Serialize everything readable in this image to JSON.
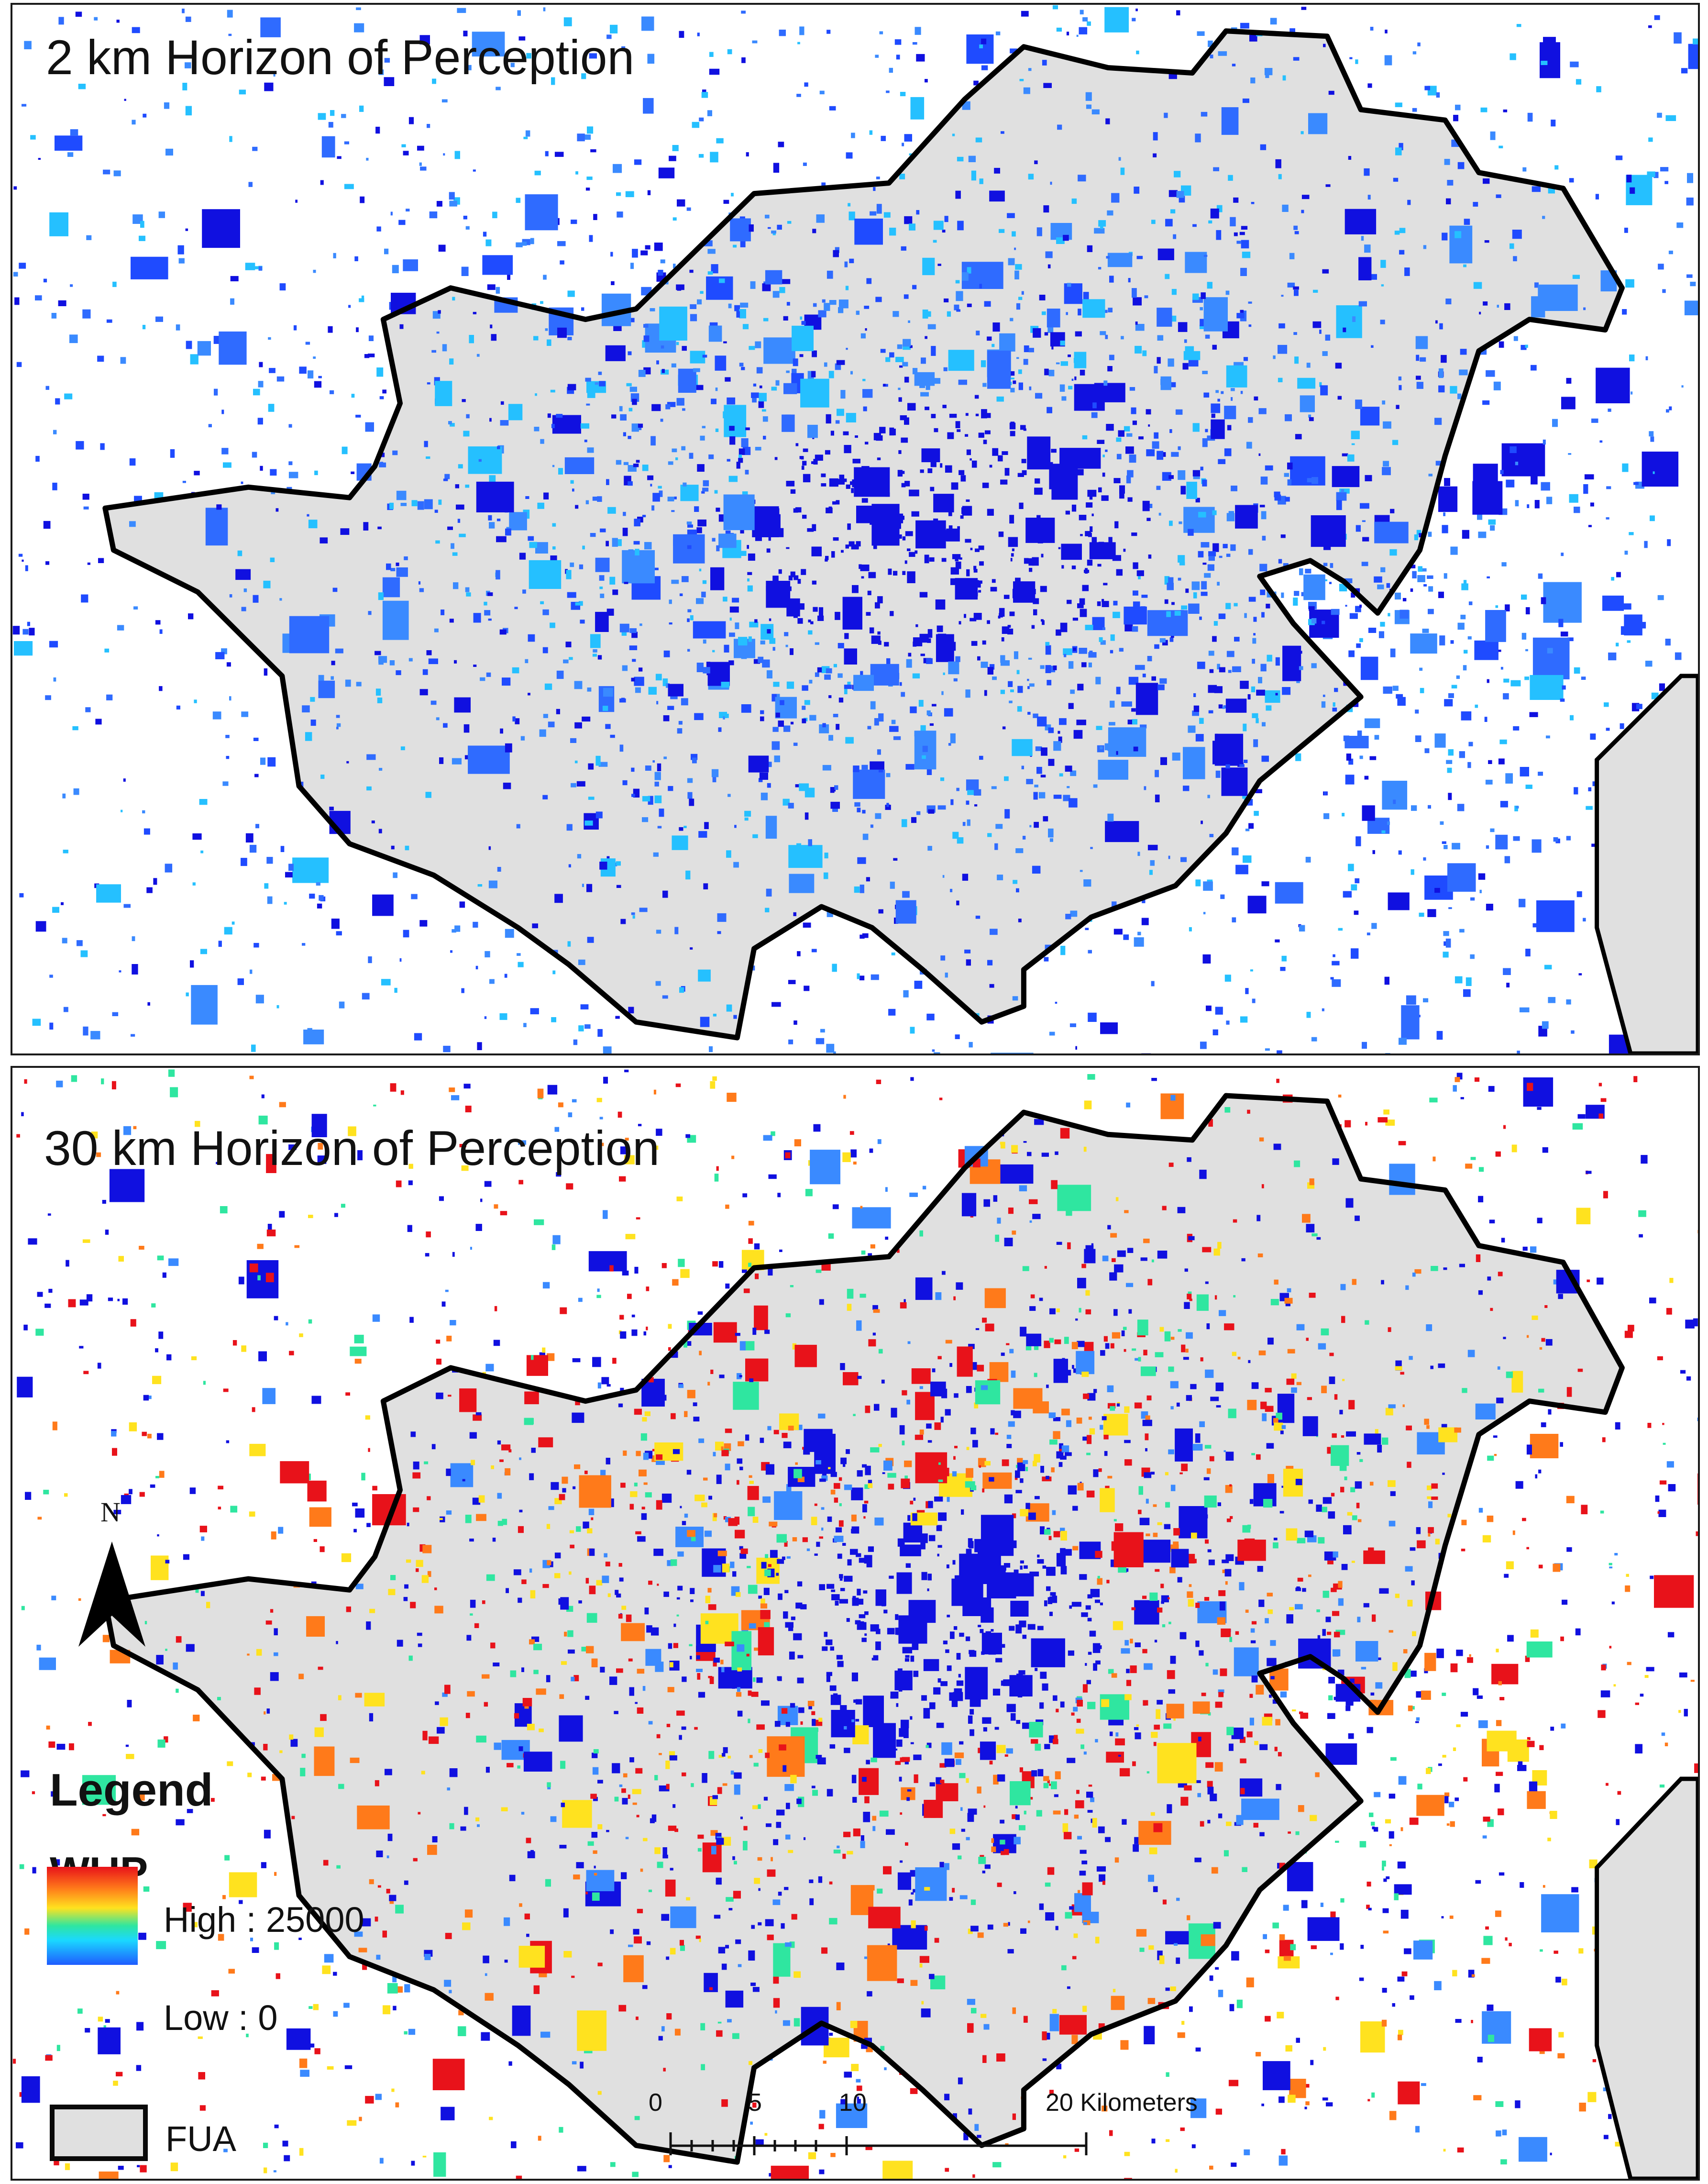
{
  "figure": {
    "panels": [
      {
        "title": "2 km Horizon of Perception",
        "scheme": "blue"
      },
      {
        "title": "30 km Horizon of Perception",
        "scheme": "rainbow"
      }
    ]
  },
  "north_arrow": {
    "label": "N"
  },
  "legend": {
    "title": "Legend",
    "variable": "WUP",
    "high_label": "High : 25000",
    "low_label": "Low : 0",
    "fua_label": "FUA",
    "ramp_colors": [
      "#e8121a",
      "#ff7a1a",
      "#ffe21f",
      "#2fe6a0",
      "#1ad8ff",
      "#1f5bff"
    ]
  },
  "scale_bar": {
    "labels": [
      "0",
      "5",
      "10",
      "20 Kilometers"
    ],
    "kilometers": [
      0,
      5,
      10,
      20
    ]
  },
  "colors": {
    "fua_fill": "#e0e0e0",
    "fua_outline": "#000000",
    "low_blue": "#1010e0",
    "high_red": "#e8121a"
  }
}
